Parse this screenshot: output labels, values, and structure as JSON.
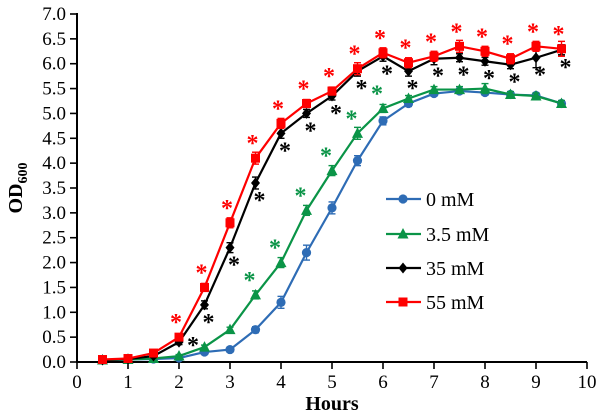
{
  "figure": {
    "xlabel": "Hours",
    "ylabel": {
      "text": "OD",
      "sub": "600"
    }
  },
  "chart_data": {
    "type": "line",
    "title": "",
    "xlabel": "Hours",
    "ylabel": "OD600",
    "xlim": [
      0,
      10
    ],
    "ylim": [
      0,
      7
    ],
    "grid": false,
    "legend_position": "center-right",
    "x_ticks": [
      "0",
      "1",
      "2",
      "3",
      "4",
      "5",
      "6",
      "7",
      "8",
      "9",
      "10"
    ],
    "y_ticks": [
      "0.0",
      "0.5",
      "1.0",
      "1.5",
      "2.0",
      "2.5",
      "3.0",
      "3.5",
      "4.0",
      "4.5",
      "5.0",
      "5.5",
      "6.0",
      "6.5",
      "7.0"
    ],
    "x": [
      0.5,
      1,
      1.5,
      2,
      2.5,
      3,
      3.5,
      4,
      4.5,
      5,
      5.5,
      6,
      6.5,
      7,
      7.5,
      8,
      8.5,
      9,
      9.5
    ],
    "series": [
      {
        "name": "0 mM",
        "color": "#2E6CB5",
        "marker": "circle",
        "values": [
          0.04,
          0.05,
          0.06,
          0.08,
          0.2,
          0.25,
          0.65,
          1.2,
          2.2,
          3.1,
          4.05,
          4.85,
          5.2,
          5.4,
          5.45,
          5.42,
          5.38,
          5.36,
          5.2
        ],
        "err": [
          0.02,
          0.02,
          0.02,
          0.03,
          0.04,
          0.05,
          0.06,
          0.12,
          0.15,
          0.12,
          0.1,
          0.08,
          0.06,
          0.05,
          0.05,
          0.05,
          0.05,
          0.05,
          0.05
        ]
      },
      {
        "name": "3.5 mM",
        "color": "#0A9447",
        "marker": "triangle",
        "values": [
          0.04,
          0.05,
          0.07,
          0.12,
          0.3,
          0.65,
          1.35,
          2.0,
          3.05,
          3.85,
          4.6,
          5.1,
          5.3,
          5.48,
          5.48,
          5.5,
          5.38,
          5.35,
          5.2
        ],
        "err": [
          0.02,
          0.02,
          0.02,
          0.03,
          0.04,
          0.05,
          0.08,
          0.1,
          0.1,
          0.1,
          0.12,
          0.08,
          0.06,
          0.06,
          0.06,
          0.1,
          0.06,
          0.06,
          0.06
        ]
      },
      {
        "name": "35 mM",
        "color": "#000000",
        "marker": "diamond",
        "values": [
          0.04,
          0.06,
          0.12,
          0.4,
          1.15,
          2.3,
          3.6,
          4.6,
          5.0,
          5.35,
          5.85,
          6.15,
          5.85,
          6.1,
          6.12,
          6.05,
          5.98,
          6.12,
          6.28
        ],
        "err": [
          0.02,
          0.02,
          0.03,
          0.05,
          0.08,
          0.1,
          0.12,
          0.1,
          0.08,
          0.08,
          0.1,
          0.1,
          0.1,
          0.12,
          0.08,
          0.08,
          0.08,
          0.2,
          0.1
        ]
      },
      {
        "name": "55 mM",
        "color": "#FE0000",
        "marker": "square",
        "values": [
          0.05,
          0.07,
          0.18,
          0.5,
          1.5,
          2.8,
          4.1,
          4.8,
          5.2,
          5.45,
          5.9,
          6.22,
          6.02,
          6.15,
          6.35,
          6.25,
          6.1,
          6.35,
          6.3
        ],
        "err": [
          0.02,
          0.02,
          0.03,
          0.05,
          0.08,
          0.1,
          0.12,
          0.1,
          0.08,
          0.08,
          0.12,
          0.1,
          0.1,
          0.1,
          0.12,
          0.1,
          0.1,
          0.1,
          0.15
        ]
      }
    ],
    "annotations": [
      {
        "symbol": "*",
        "color": "#FE0000",
        "series": "55 mM",
        "placement": "above",
        "hours": [
          2,
          2.5,
          3,
          3.5,
          4,
          4.5,
          5,
          5.5,
          6,
          6.5,
          7,
          7.5,
          8,
          8.5,
          9,
          9.5
        ]
      },
      {
        "symbol": "*",
        "color": "#000000",
        "series": "35 mM",
        "placement": "below",
        "hours": [
          2,
          2.5,
          3,
          3.5,
          4,
          4.5,
          5,
          5.5,
          6,
          6.5,
          7,
          7.5,
          8,
          8.5,
          9,
          9.5
        ]
      },
      {
        "symbol": "*",
        "color": "#0A9447",
        "series": "3.5 mM",
        "placement": "above",
        "hours": [
          3.5,
          4,
          4.5,
          5,
          5.5,
          6
        ]
      }
    ]
  }
}
